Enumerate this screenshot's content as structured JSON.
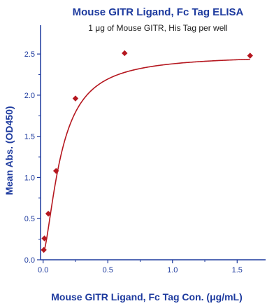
{
  "chart_data": {
    "type": "scatter",
    "title": "Mouse GITR Ligand, Fc Tag ELISA",
    "subtitle": "1 μg of Mouse GITR, His Tag per well",
    "xlabel": "Mouse GITR Ligand, Fc Tag Con. (μg/mL)",
    "ylabel": "Mean Abs. (OD450)",
    "xlim": [
      -0.02,
      1.72
    ],
    "ylim": [
      0,
      2.85
    ],
    "xticks": [
      0.0,
      0.5,
      1.0,
      1.5
    ],
    "xtick_labels": [
      "0.0",
      "0.5",
      "1.0",
      "1.5"
    ],
    "yticks": [
      0.0,
      0.5,
      1.0,
      1.5,
      2.0,
      2.5
    ],
    "ytick_labels": [
      "0.0",
      "0.5",
      "1.0",
      "1.5",
      "2.0",
      "2.5"
    ],
    "grid": false,
    "legend": "none",
    "series": [
      {
        "x": [
          0.005,
          0.01,
          0.04,
          0.1,
          0.25,
          0.63,
          1.6
        ],
        "y": [
          0.12,
          0.26,
          0.56,
          1.08,
          1.96,
          2.51,
          2.48
        ],
        "marker": "diamond",
        "fit": "sigmoidal",
        "color": "#b5171f"
      }
    ],
    "colors": {
      "title": "#1d3a9e",
      "axis": "#1d3a9e",
      "tick_text": "#1d3a9e",
      "data": "#b5171f"
    }
  }
}
